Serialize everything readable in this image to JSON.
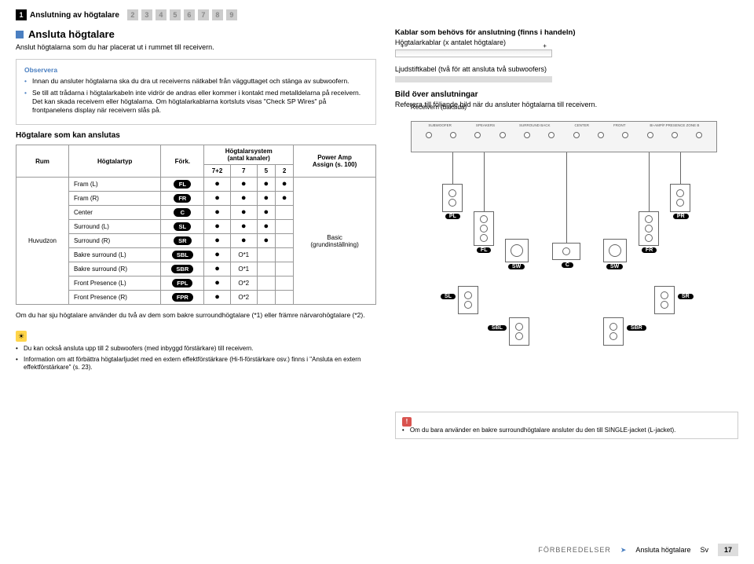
{
  "nav": {
    "active_step": "1",
    "active_label": "Anslutning av högtalare",
    "inactive_steps": [
      "2",
      "3",
      "4",
      "5",
      "6",
      "7",
      "8",
      "9"
    ]
  },
  "left": {
    "heading": "Ansluta högtalare",
    "subtext": "Anslut högtalarna som du har placerat ut i rummet till receivern.",
    "note_title": "Observera",
    "note_items": [
      "Innan du ansluter högtalarna ska du dra ut receiverns nätkabel från vägguttaget och stänga av subwoofern.",
      "Se till att trådarna i högtalarkabeln inte vidrör de andras eller kommer i kontakt med metalldelarna på receivern. Det kan skada receivern eller högtalarna. Om högtalarkablarna kortsluts visas \"Check SP Wires\" på frontpanelens display när receivern slås på."
    ],
    "connectable_heading": "Högtalare som kan anslutas",
    "table": {
      "columns": {
        "room": "Rum",
        "type": "Högtalartyp",
        "abbr": "Förk.",
        "system": "Högtalarsystem\n(antal kanaler)",
        "assign": "Power Amp\nAssign (s. 100)"
      },
      "subcols": [
        "7+2",
        "7",
        "5",
        "2"
      ],
      "room_label": "Huvudzon",
      "power_label": "Basic\n(grundinställning)",
      "rows": [
        {
          "type": "Fram (L)",
          "abbr": "FL",
          "d": [
            "●",
            "●",
            "●",
            "●"
          ]
        },
        {
          "type": "Fram (R)",
          "abbr": "FR",
          "d": [
            "●",
            "●",
            "●",
            "●"
          ]
        },
        {
          "type": "Center",
          "abbr": "C",
          "d": [
            "●",
            "●",
            "●",
            ""
          ]
        },
        {
          "type": "Surround (L)",
          "abbr": "SL",
          "d": [
            "●",
            "●",
            "●",
            ""
          ]
        },
        {
          "type": "Surround (R)",
          "abbr": "SR",
          "d": [
            "●",
            "●",
            "●",
            ""
          ]
        },
        {
          "type": "Bakre surround (L)",
          "abbr": "SBL",
          "d": [
            "●",
            "O*1",
            "",
            ""
          ]
        },
        {
          "type": "Bakre surround (R)",
          "abbr": "SBR",
          "d": [
            "●",
            "O*1",
            "",
            ""
          ]
        },
        {
          "type": "Front Presence (L)",
          "abbr": "FPL",
          "d": [
            "●",
            "O*2",
            "",
            ""
          ]
        },
        {
          "type": "Front Presence (R)",
          "abbr": "FPR",
          "d": [
            "●",
            "O*2",
            "",
            ""
          ]
        }
      ]
    },
    "footnote": "Om du har sju högtalare använder du två av dem som bakre surroundhögtalare (*1) eller främre närvarohögtalare (*2).",
    "tips": [
      "Du kan också ansluta upp till 2 subwoofers (med inbyggd förstärkare) till receivern.",
      "Information om att förbättra högtalarljudet med en extern effektförstärkare (Hi-fi-förstärkare osv.) finns i \"Ansluta en extern effektförstärkare\" (s. 23)."
    ]
  },
  "right": {
    "cables_heading": "Kablar som behövs för anslutning (finns i handeln)",
    "cables_sub": "Högtalarkablar (x antalet högtalare)",
    "pin_label": "Ljudstiftkabel (två för att ansluta två subwoofers)",
    "diagram_heading": "Bild över anslutningar",
    "diagram_sub": "Referera till följande bild när du ansluter högtalarna till receivern.",
    "backpanel_label": "Receivern (baksida)",
    "jack_groups": [
      "SUBWOOFER",
      "SPEAKERS",
      "SURROUND BACK",
      "CENTER",
      "FRONT",
      "BI-AMP/F.PRESENCE ZONE B"
    ],
    "spk_labels": {
      "pl": "PL",
      "pr": "PR",
      "fl": "FL",
      "fr": "FR",
      "sw1": "SW",
      "c": "C",
      "sw2": "SW",
      "sl": "SL",
      "sr": "SR",
      "sbl": "SBL",
      "sbr": "SBR"
    },
    "alert": "Om du bara använder en bakre surroundhögtalare ansluter du den till SINGLE-jacket (L-jacket)."
  },
  "footer": {
    "crumb1": "FÖRBEREDELSER",
    "crumb2": "Ansluta högtalare",
    "lang": "Sv",
    "page": "17"
  },
  "colors": {
    "accent": "#4a7fc1",
    "warn": "#d9534f",
    "tip": "#ffd54a"
  }
}
